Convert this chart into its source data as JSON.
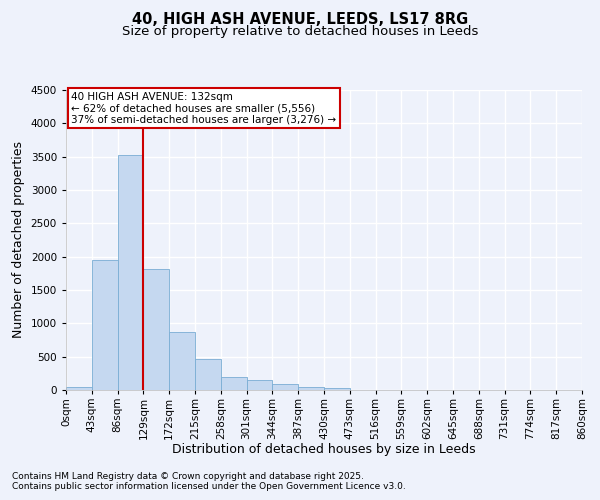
{
  "title_line1": "40, HIGH ASH AVENUE, LEEDS, LS17 8RG",
  "title_line2": "Size of property relative to detached houses in Leeds",
  "xlabel": "Distribution of detached houses by size in Leeds",
  "ylabel": "Number of detached properties",
  "bin_labels": [
    "0sqm",
    "43sqm",
    "86sqm",
    "129sqm",
    "172sqm",
    "215sqm",
    "258sqm",
    "301sqm",
    "344sqm",
    "387sqm",
    "430sqm",
    "473sqm",
    "516sqm",
    "559sqm",
    "602sqm",
    "645sqm",
    "688sqm",
    "731sqm",
    "774sqm",
    "817sqm",
    "860sqm"
  ],
  "bar_values": [
    50,
    1950,
    3530,
    1820,
    870,
    460,
    195,
    155,
    90,
    50,
    35,
    5,
    5,
    0,
    0,
    0,
    0,
    0,
    0,
    0
  ],
  "bar_color": "#c5d8f0",
  "bar_edge_color": "#7aadd4",
  "vline_x": 3,
  "vline_color": "#cc0000",
  "ylim": [
    0,
    4500
  ],
  "yticks": [
    0,
    500,
    1000,
    1500,
    2000,
    2500,
    3000,
    3500,
    4000,
    4500
  ],
  "annotation_title": "40 HIGH ASH AVENUE: 132sqm",
  "annotation_line2": "← 62% of detached houses are smaller (5,556)",
  "annotation_line3": "37% of semi-detached houses are larger (3,276) →",
  "annotation_box_color": "#ffffff",
  "annotation_border_color": "#cc0000",
  "footnote1": "Contains HM Land Registry data © Crown copyright and database right 2025.",
  "footnote2": "Contains public sector information licensed under the Open Government Licence v3.0.",
  "background_color": "#eef2fb",
  "grid_color": "#ffffff",
  "title_fontsize": 10.5,
  "subtitle_fontsize": 9.5,
  "tick_fontsize": 7.5,
  "label_fontsize": 9,
  "annot_fontsize": 7.5,
  "footnote_fontsize": 6.5
}
